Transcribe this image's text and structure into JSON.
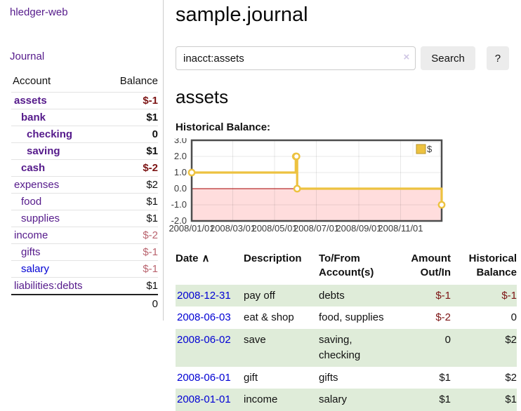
{
  "colors": {
    "accent_purple": "#551a8b",
    "link_blue": "#0000d4",
    "negative_strong": "#7c1414",
    "negative_muted": "#b9636e",
    "row_green": "#dfecd9",
    "chart_gold": "#edc240"
  },
  "app": {
    "brand": "hledger-web",
    "nav_journal": "Journal",
    "title": "sample.journal"
  },
  "search": {
    "value": "inacct:assets",
    "clear_icon": "×",
    "button_label": "Search",
    "help_label": "?"
  },
  "sidebar": {
    "account_header": "Account",
    "balance_header": "Balance",
    "accounts": [
      {
        "name": "assets",
        "depth": 1,
        "balance": "$-1",
        "bold": true
      },
      {
        "name": "bank",
        "depth": 2,
        "balance": "$1",
        "bold": true
      },
      {
        "name": "checking",
        "depth": 3,
        "balance": "0",
        "bold": true
      },
      {
        "name": "saving",
        "depth": 3,
        "balance": "$1",
        "bold": true
      },
      {
        "name": "cash",
        "depth": 2,
        "balance": "$-2",
        "bold": true
      },
      {
        "name": "expenses",
        "depth": 1,
        "balance": "$2"
      },
      {
        "name": "food",
        "depth": 2,
        "balance": "$1"
      },
      {
        "name": "supplies",
        "depth": 2,
        "balance": "$1"
      },
      {
        "name": "income",
        "depth": 1,
        "balance": "$-2"
      },
      {
        "name": "gifts",
        "depth": 2,
        "balance": "$-1"
      },
      {
        "name": "salary",
        "depth": 2,
        "balance": "$-1",
        "unvisited": true
      },
      {
        "name": "liabilities:debts",
        "depth": 1,
        "balance": "$1"
      }
    ],
    "total": "0"
  },
  "account_page": {
    "heading": "assets",
    "chart_title": "Historical Balance:"
  },
  "chart_data": {
    "type": "line",
    "steps": true,
    "legend": "$",
    "legend_position": "top-right",
    "grid": true,
    "ylim": [
      -2,
      3
    ],
    "yticks": [
      3.0,
      2.0,
      1.0,
      0.0,
      -1.0,
      -2.0
    ],
    "xticks": [
      "2008/01/01",
      "2008/03/01",
      "2008/05/01",
      "2008/07/01",
      "2008/09/01",
      "2008/11/01"
    ],
    "xrange": [
      "2008-01-01",
      "2008-12-31"
    ],
    "series": [
      {
        "name": "$",
        "color": "#edc240",
        "points": [
          {
            "x": "2008-01-01",
            "y": 1
          },
          {
            "x": "2008-06-01",
            "y": 2
          },
          {
            "x": "2008-06-02",
            "y": 2
          },
          {
            "x": "2008-06-03",
            "y": 0
          },
          {
            "x": "2008-12-31",
            "y": -1
          }
        ]
      }
    ],
    "negative_region_fill": "#ffdddd",
    "zero_line_color": "#a40000"
  },
  "register": {
    "sort_icon": "∧",
    "headers": {
      "date": "Date",
      "description": "Description",
      "accounts": "To/From Account(s)",
      "amount": "Amount Out/In",
      "balance": "Historical Balance"
    },
    "rows": [
      {
        "date": "2008-12-31",
        "description": "pay off",
        "accounts": "debts",
        "amount": "$-1",
        "balance": "$-1"
      },
      {
        "date": "2008-06-03",
        "description": "eat & shop",
        "accounts": "food, supplies",
        "amount": "$-2",
        "balance": "0"
      },
      {
        "date": "2008-06-02",
        "description": "save",
        "accounts": "saving, checking",
        "amount": "0",
        "balance": "$2"
      },
      {
        "date": "2008-06-01",
        "description": "gift",
        "accounts": "gifts",
        "amount": "$1",
        "balance": "$2"
      },
      {
        "date": "2008-01-01",
        "description": "income",
        "accounts": "salary",
        "amount": "$1",
        "balance": "$1"
      }
    ]
  }
}
